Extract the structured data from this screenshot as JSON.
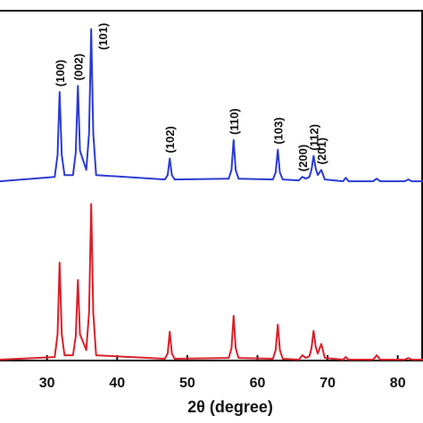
{
  "chart_data": {
    "type": "line",
    "x_label": "2θ (degree)",
    "xlim": [
      23.3,
      83.6
    ],
    "xticks": [
      30,
      40,
      50,
      60,
      70,
      80
    ],
    "ylim": [
      0,
      400
    ],
    "x": [
      23.3,
      31.1,
      31.5,
      31.8,
      32.1,
      32.5,
      33.7,
      34.1,
      34.4,
      34.7,
      35.6,
      36.0,
      36.3,
      36.6,
      37.0,
      46.8,
      47.2,
      47.5,
      47.8,
      48.2,
      55.9,
      56.3,
      56.6,
      56.9,
      57.3,
      62.2,
      62.6,
      62.9,
      63.2,
      63.6,
      65.9,
      66.4,
      66.9,
      67.4,
      67.7,
      68.0,
      68.3,
      68.6,
      69.1,
      69.6,
      72.2,
      72.6,
      73.0,
      76.5,
      77.0,
      77.5,
      81.0,
      81.5,
      82.0,
      83.6
    ],
    "series": [
      {
        "color": "#2b3bd0",
        "values": [
          205,
          210,
          235,
          307,
          235,
          212,
          212,
          238,
          314,
          240,
          218,
          260,
          379,
          260,
          212,
          207,
          212,
          231,
          212,
          207,
          208,
          218,
          252,
          218,
          208,
          207,
          215,
          241,
          215,
          207,
          206,
          210,
          208,
          210,
          218,
          234,
          220,
          212,
          218,
          207,
          205,
          209,
          205,
          205,
          208,
          205,
          205,
          207,
          205,
          205
        ]
      },
      {
        "color": "#d8202a",
        "values": [
          1,
          4,
          30,
          112,
          30,
          6,
          6,
          28,
          92,
          30,
          12,
          55,
          179,
          55,
          6,
          2,
          8,
          33,
          8,
          2,
          3,
          14,
          51,
          14,
          3,
          2,
          12,
          41,
          12,
          2,
          1,
          6,
          3,
          5,
          14,
          34,
          16,
          8,
          19,
          3,
          1,
          4,
          1,
          1,
          6,
          1,
          1,
          3,
          1,
          1
        ]
      }
    ],
    "annotations": [
      {
        "text": "(100)",
        "x": 31.8
      },
      {
        "text": "(002)",
        "x": 34.4
      },
      {
        "text": "(101)",
        "x": 36.3
      },
      {
        "text": "(102)",
        "x": 47.5
      },
      {
        "text": "(110)",
        "x": 56.6
      },
      {
        "text": "(103)",
        "x": 62.9
      },
      {
        "text": "(200)",
        "x": 66.4
      },
      {
        "text": "(112)",
        "x": 68.0
      },
      {
        "text": "(201)",
        "x": 69.1
      }
    ]
  }
}
